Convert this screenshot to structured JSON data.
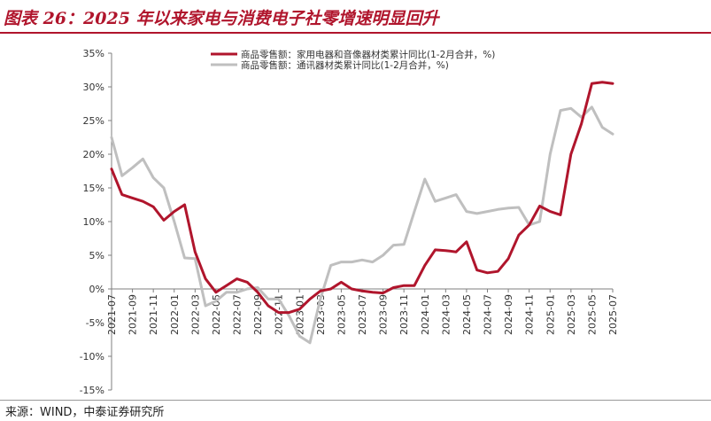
{
  "title": "图表 26：2025 年以来家电与消费电子社零增速明显回升",
  "source": "来源：WIND，中泰证券研究所",
  "colors": {
    "series1": "#b0152c",
    "series2": "#bfbfbf",
    "title": "#b0152c"
  },
  "chart_data": {
    "type": "line",
    "ylim": [
      -15,
      35
    ],
    "yticks": [
      "35%",
      "30%",
      "25%",
      "20%",
      "15%",
      "10%",
      "5%",
      "0%",
      "-5%",
      "-10%",
      "-15%"
    ],
    "ytick_values": [
      35,
      30,
      25,
      20,
      15,
      10,
      5,
      0,
      -5,
      -10,
      -15
    ],
    "xtick_labels": [
      "2021-07",
      "2021-09",
      "2021-11",
      "2022-01",
      "2022-03",
      "2022-05",
      "2022-07",
      "2022-09",
      "2022-11",
      "2023-01",
      "2023-03",
      "2023-05",
      "2023-07",
      "2023-09",
      "2023-11",
      "2024-01",
      "2024-03",
      "2024-05",
      "2024-07",
      "2024-09",
      "2024-11",
      "2025-01",
      "2025-03",
      "2025-05",
      "2025-07"
    ],
    "x": [
      "2021-07",
      "2021-08",
      "2021-09",
      "2021-10",
      "2021-11",
      "2021-12",
      "2022-01",
      "2022-02",
      "2022-03",
      "2022-04",
      "2022-05",
      "2022-06",
      "2022-07",
      "2022-08",
      "2022-09",
      "2022-10",
      "2022-11",
      "2022-12",
      "2023-01",
      "2023-02",
      "2023-03",
      "2023-04",
      "2023-05",
      "2023-06",
      "2023-07",
      "2023-08",
      "2023-09",
      "2023-10",
      "2023-11",
      "2023-12",
      "2024-01",
      "2024-02",
      "2024-03",
      "2024-04",
      "2024-05",
      "2024-06",
      "2024-07",
      "2024-08",
      "2024-09",
      "2024-10",
      "2024-11",
      "2024-12",
      "2025-01",
      "2025-02",
      "2025-03",
      "2025-04",
      "2025-05",
      "2025-06",
      "2025-07"
    ],
    "legend_position": "top-center",
    "series": [
      {
        "name": "商品零售额：家用电器和音像器材类累计同比(1-2月合并，%)",
        "values": [
          17.8,
          14,
          13.5,
          13,
          12.2,
          10.2,
          11.5,
          12.5,
          5.5,
          1.5,
          -0.5,
          0.5,
          1.5,
          1,
          -0.5,
          -2.5,
          -3.5,
          -3.5,
          -3,
          -1.5,
          -0.3,
          0,
          1,
          0,
          -0.3,
          -0.5,
          -0.6,
          0.2,
          0.5,
          0.5,
          3.5,
          5.8,
          5.7,
          5.5,
          7,
          2.8,
          2.4,
          2.6,
          4.5,
          8,
          9.5,
          12.3,
          11.5,
          11,
          20,
          24.5,
          30.5,
          30.7,
          30.5
        ]
      },
      {
        "name": "商品零售额：通讯器材类累计同比(1-2月合并，%)",
        "values": [
          22.5,
          16.8,
          18,
          19.3,
          16.5,
          15,
          10,
          4.6,
          4.5,
          -2.5,
          -1.8,
          -0.5,
          -0.5,
          0,
          0.2,
          -1.5,
          -1.5,
          -4,
          -7,
          -8,
          -1.5,
          3.5,
          4,
          4,
          4.3,
          4,
          5,
          6.5,
          6.6,
          11.5,
          16.3,
          13,
          13.5,
          14,
          11.5,
          11.2,
          11.5,
          11.8,
          12,
          12.1,
          9.5,
          10,
          20,
          26.5,
          26.8,
          25.5,
          27,
          24,
          23
        ]
      }
    ]
  }
}
